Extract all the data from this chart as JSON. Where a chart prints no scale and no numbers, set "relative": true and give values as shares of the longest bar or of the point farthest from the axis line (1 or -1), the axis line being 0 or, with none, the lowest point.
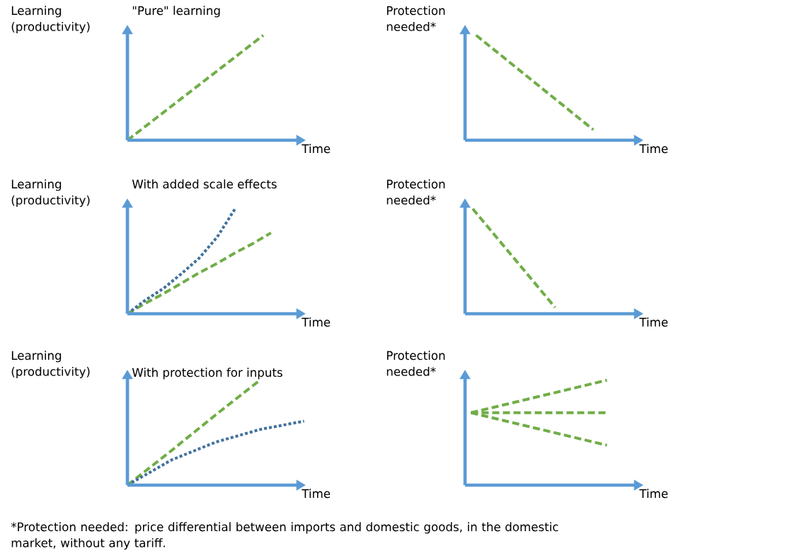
{
  "chart_data": [
    {
      "type": "line",
      "relative": true,
      "title": "\"Pure\" learning",
      "ylabel": "Learning (productivity)",
      "xlabel": "Time",
      "categories": [
        null,
        null
      ],
      "series": [
        {
          "color": "#70ad47",
          "line_style": "dashed",
          "values": [
            0,
            1
          ]
        }
      ]
    },
    {
      "type": "line",
      "relative": true,
      "ylabel": "Protection needed*",
      "xlabel": "Time",
      "categories": [
        null,
        null
      ],
      "series": [
        {
          "color": "#70ad47",
          "line_style": "dashed",
          "values": [
            1,
            0.1
          ]
        }
      ]
    },
    {
      "type": "line",
      "relative": true,
      "title": "With added scale effects",
      "ylabel": "Learning (productivity)",
      "xlabel": "Time",
      "categories": [
        null,
        null,
        null,
        null,
        null,
        null,
        null,
        null,
        null
      ],
      "series": [
        {
          "color": "#70ad47",
          "line_style": "dashed",
          "values": [
            0,
            0.1,
            0.19,
            0.29,
            0.39,
            0.48,
            0.58,
            0.67,
            0.77
          ]
        },
        {
          "color": "#41719c",
          "line_style": "dotted",
          "values": [
            0,
            0.13,
            0.24,
            0.38,
            0.53,
            0.73,
            1,
            null,
            null
          ]
        }
      ]
    },
    {
      "type": "line",
      "relative": true,
      "ylabel": "Protection needed*",
      "xlabel": "Time",
      "categories": [
        null,
        null
      ],
      "series": [
        {
          "color": "#70ad47",
          "line_style": "dashed",
          "values": [
            1,
            0.06
          ]
        }
      ]
    },
    {
      "type": "line",
      "relative": true,
      "title": "With protection for inputs",
      "ylabel": "Learning (productivity)",
      "xlabel": "Time",
      "annotations": [
        "*Protection needed: price differential between imports and domestic goods, in the domestic market, without any tariff."
      ],
      "categories": [
        null,
        null,
        null,
        null,
        null
      ],
      "series": [
        {
          "color": "#70ad47",
          "line_style": "dashed",
          "values": [
            0,
            0.33,
            0.67,
            1,
            null
          ]
        },
        {
          "color": "#41719c",
          "line_style": "dotted",
          "values": [
            0,
            0.24,
            0.41,
            0.53,
            0.61
          ]
        }
      ]
    },
    {
      "type": "line",
      "relative": true,
      "ylabel": "Protection needed*",
      "xlabel": "Time",
      "categories": [
        null,
        null
      ],
      "series": [
        {
          "color": "#70ad47",
          "line_style": "dashed",
          "values": [
            0.69,
            1
          ]
        },
        {
          "color": "#70ad47",
          "line_style": "dashed",
          "values": [
            0.69,
            0.69
          ]
        },
        {
          "color": "#70ad47",
          "line_style": "dashed",
          "values": [
            0.69,
            0.38
          ]
        }
      ]
    }
  ]
}
